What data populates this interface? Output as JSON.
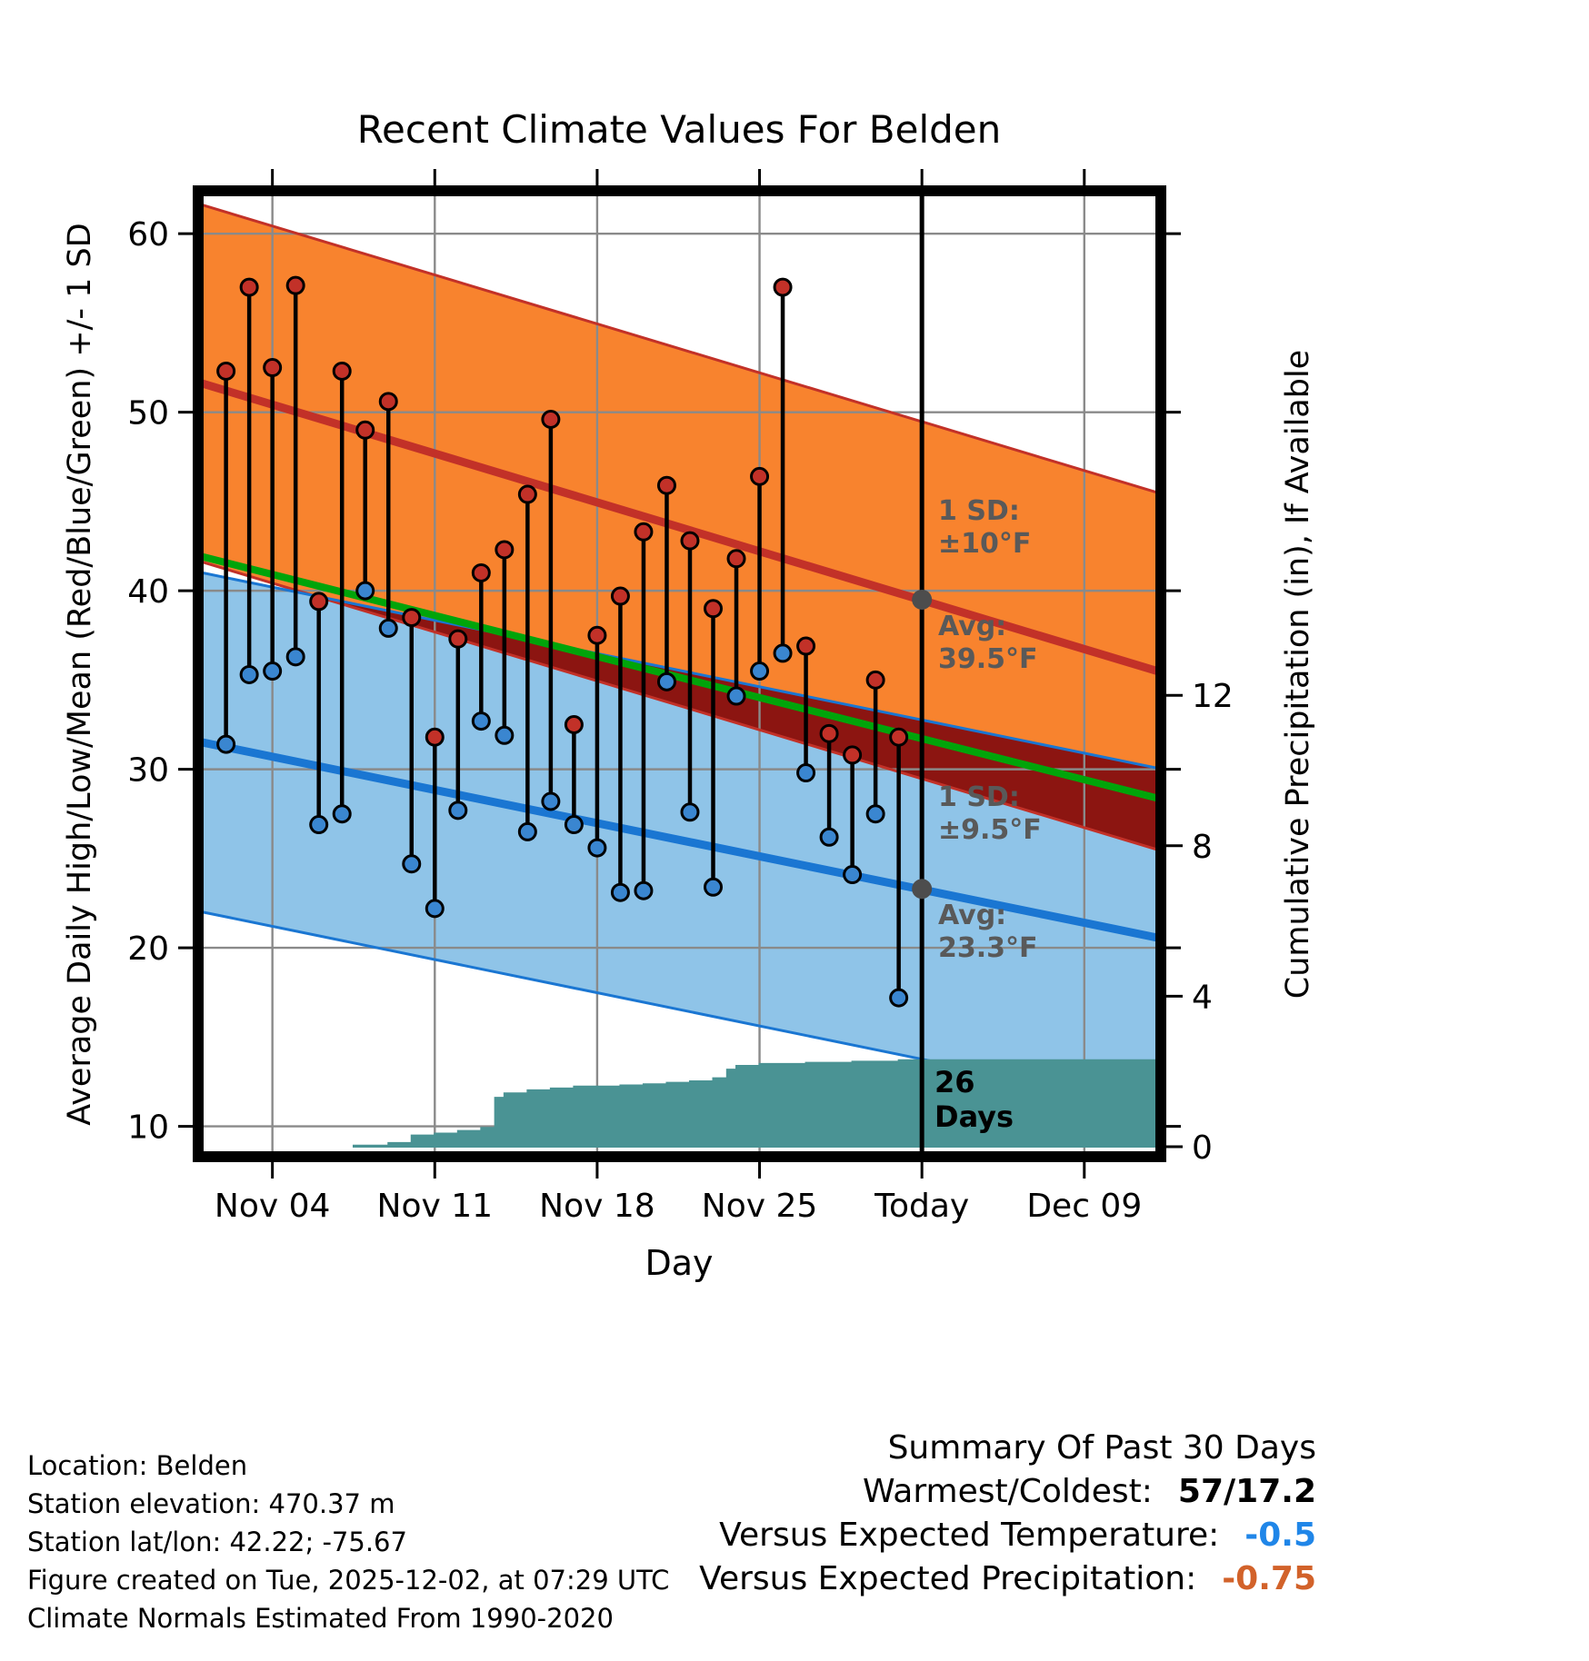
{
  "title": "Recent Climate Values For Belden",
  "axes": {
    "y_left_label": "Average Daily High/Low/Mean (Red/Blue/Green) +/- 1 SD",
    "y_right_label": "Cumulative Precipitation (in), If Available",
    "x_label": "Day"
  },
  "annotations": {
    "high_sd_line1": "1 SD:",
    "high_sd_line2": "±10°F",
    "high_avg_line1": "Avg:",
    "high_avg_line2": "39.5°F",
    "low_sd_line1": "1 SD:",
    "low_sd_line2": "±9.5°F",
    "low_avg_line1": "Avg:",
    "low_avg_line2": "23.3°F",
    "days_count_line1": "26",
    "days_count_line2": "Days"
  },
  "footer_left": {
    "lines": [
      "Location: Belden",
      "Station elevation: 470.37 m",
      "Station lat/lon: 42.22; -75.67",
      "Figure created on Tue, 2025-12-02, at 07:29 UTC",
      "Climate Normals Estimated From 1990-2020"
    ]
  },
  "summary": {
    "title": "Summary Of Past 30 Days",
    "rows": [
      {
        "label": "Warmest/Coldest:",
        "value": "57/17.2",
        "color": "#000000"
      },
      {
        "label": "Versus Expected Temperature:",
        "value": "-0.5",
        "color": "#2086e8"
      },
      {
        "label": "Versus Expected Precipitation:",
        "value": "-0.75",
        "color": "#d2622a"
      }
    ]
  },
  "chart_data": {
    "type": "line",
    "title": "Recent Climate Values For Belden",
    "xlabel": "Day",
    "ylabel_left": "Average Daily High/Low/Mean (Red/Blue/Green) +/- 1 SD",
    "ylabel_right": "Cumulative Precipitation (in), If Available",
    "x_ticks": [
      {
        "label": "Nov 04",
        "day": 3
      },
      {
        "label": "Nov 11",
        "day": 10
      },
      {
        "label": "Nov 18",
        "day": 17
      },
      {
        "label": "Nov 25",
        "day": 24
      },
      {
        "label": "Today",
        "day": 31
      },
      {
        "label": "Dec 09",
        "day": 38
      }
    ],
    "y_left_ticks": [
      10,
      20,
      30,
      40,
      50,
      60
    ],
    "y_left_range_visible": [
      10,
      60
    ],
    "y_right_ticks": [
      0,
      4,
      8,
      12
    ],
    "today_day": 31,
    "grid": true,
    "normals": {
      "span_days": 41.4,
      "high": {
        "avg_start": 51.6,
        "avg_end": 35.4,
        "sd": 10,
        "today_avg": 39.5,
        "line_color": "#c23128",
        "band_color": "#f8832e"
      },
      "low": {
        "avg_start": 31.5,
        "avg_end": 20.5,
        "sd": 9.5,
        "today_avg": 23.3,
        "line_color": "#1a76d2",
        "band_color": "#8fc4e8"
      },
      "mean": {
        "avg_start": 41.9,
        "avg_end": 28.3,
        "line_color": "#00a40a"
      },
      "overlap_color": "#8c1511"
    },
    "daily": [
      {
        "date": "Nov 02",
        "day": 1,
        "high": 52.3,
        "low": 31.4
      },
      {
        "date": "Nov 03",
        "day": 2,
        "high": 57.0,
        "low": 35.3
      },
      {
        "date": "Nov 04",
        "day": 3,
        "high": 52.5,
        "low": 35.5
      },
      {
        "date": "Nov 05",
        "day": 4,
        "high": 57.1,
        "low": 36.3
      },
      {
        "date": "Nov 06",
        "day": 5,
        "high": 39.4,
        "low": 26.9
      },
      {
        "date": "Nov 07",
        "day": 6,
        "high": 52.3,
        "low": 27.5
      },
      {
        "date": "Nov 08",
        "day": 7,
        "high": 49.0,
        "low": 40.0
      },
      {
        "date": "Nov 09",
        "day": 8,
        "high": 50.6,
        "low": 37.9
      },
      {
        "date": "Nov 10",
        "day": 9,
        "high": 38.5,
        "low": 24.7
      },
      {
        "date": "Nov 11",
        "day": 10,
        "high": 31.8,
        "low": 22.2
      },
      {
        "date": "Nov 12",
        "day": 11,
        "high": 37.3,
        "low": 27.7
      },
      {
        "date": "Nov 13",
        "day": 12,
        "high": 41.0,
        "low": 32.7
      },
      {
        "date": "Nov 14",
        "day": 13,
        "high": 42.3,
        "low": 31.9
      },
      {
        "date": "Nov 15",
        "day": 14,
        "high": 45.4,
        "low": 26.5
      },
      {
        "date": "Nov 16",
        "day": 15,
        "high": 49.6,
        "low": 28.2
      },
      {
        "date": "Nov 17",
        "day": 16,
        "high": 32.5,
        "low": 26.9
      },
      {
        "date": "Nov 18",
        "day": 17,
        "high": 37.5,
        "low": 25.6
      },
      {
        "date": "Nov 19",
        "day": 18,
        "high": 39.7,
        "low": 23.1
      },
      {
        "date": "Nov 20",
        "day": 19,
        "high": 43.3,
        "low": 23.2
      },
      {
        "date": "Nov 21",
        "day": 20,
        "high": 45.9,
        "low": 34.9
      },
      {
        "date": "Nov 22",
        "day": 21,
        "high": 42.8,
        "low": 27.6
      },
      {
        "date": "Nov 23",
        "day": 22,
        "high": 39.0,
        "low": 23.4
      },
      {
        "date": "Nov 24",
        "day": 23,
        "high": 41.8,
        "low": 34.1
      },
      {
        "date": "Nov 25",
        "day": 24,
        "high": 46.4,
        "low": 35.5
      },
      {
        "date": "Nov 26",
        "day": 25,
        "high": 57.0,
        "low": 36.5
      },
      {
        "date": "Nov 27",
        "day": 26,
        "high": 36.9,
        "low": 29.8
      },
      {
        "date": "Nov 28",
        "day": 27,
        "high": 32.0,
        "low": 26.2
      },
      {
        "date": "Nov 29",
        "day": 28,
        "high": 30.8,
        "low": 24.1
      },
      {
        "date": "Nov 30",
        "day": 29,
        "high": 35.0,
        "low": 27.5
      },
      {
        "date": "Dec 01",
        "day": 30,
        "high": 31.8,
        "low": 17.2
      }
    ],
    "precip_cumulative": {
      "days_available": 26,
      "color": "#4a9394",
      "points": [
        [
          6.5,
          0.03
        ],
        [
          8,
          0.1
        ],
        [
          9,
          0.3
        ],
        [
          10,
          0.35
        ],
        [
          11,
          0.42
        ],
        [
          12,
          0.5
        ],
        [
          12.6,
          1.3
        ],
        [
          13,
          1.42
        ],
        [
          14,
          1.5
        ],
        [
          15,
          1.55
        ],
        [
          16,
          1.6
        ],
        [
          18,
          1.63
        ],
        [
          19,
          1.66
        ],
        [
          20,
          1.7
        ],
        [
          21,
          1.74
        ],
        [
          22,
          1.82
        ],
        [
          22.6,
          2.05
        ],
        [
          23,
          2.15
        ],
        [
          24,
          2.2
        ],
        [
          26,
          2.23
        ],
        [
          28,
          2.26
        ],
        [
          30,
          2.3
        ]
      ]
    },
    "colors": {
      "high_dot": "#c23128",
      "low_dot": "#3a86d0",
      "stem": "#000000",
      "grid": "#8a8a8a",
      "today_line": "#000000",
      "marker_gray": "#4d4d4d",
      "border": "#000000"
    }
  }
}
